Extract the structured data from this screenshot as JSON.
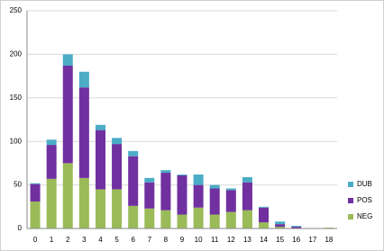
{
  "chart_data": {
    "type": "stacked-bar",
    "categories": [
      "0",
      "1",
      "2",
      "3",
      "4",
      "5",
      "6",
      "7",
      "8",
      "9",
      "10",
      "11",
      "12",
      "13",
      "14",
      "15",
      "16",
      "17",
      "18"
    ],
    "series": [
      {
        "name": "NEG",
        "color": "#9bbb59",
        "values": [
          31,
          57,
          75,
          58,
          45,
          45,
          26,
          23,
          21,
          16,
          24,
          16,
          19,
          21,
          7,
          2,
          0,
          0,
          1
        ]
      },
      {
        "name": "POS",
        "color": "#7030a0",
        "values": [
          20,
          39,
          112,
          104,
          68,
          52,
          57,
          30,
          43,
          45,
          26,
          30,
          25,
          32,
          17,
          3,
          2,
          0,
          0
        ]
      },
      {
        "name": "DUB",
        "color": "#4bacc6",
        "values": [
          1,
          6,
          13,
          18,
          6,
          7,
          6,
          5,
          3,
          1,
          12,
          4,
          2,
          6,
          1,
          3,
          1,
          0,
          0
        ]
      }
    ],
    "ylim": [
      0,
      250
    ],
    "yticks": [
      0,
      50,
      100,
      150,
      200,
      250
    ],
    "grid": true,
    "legend": "right"
  }
}
